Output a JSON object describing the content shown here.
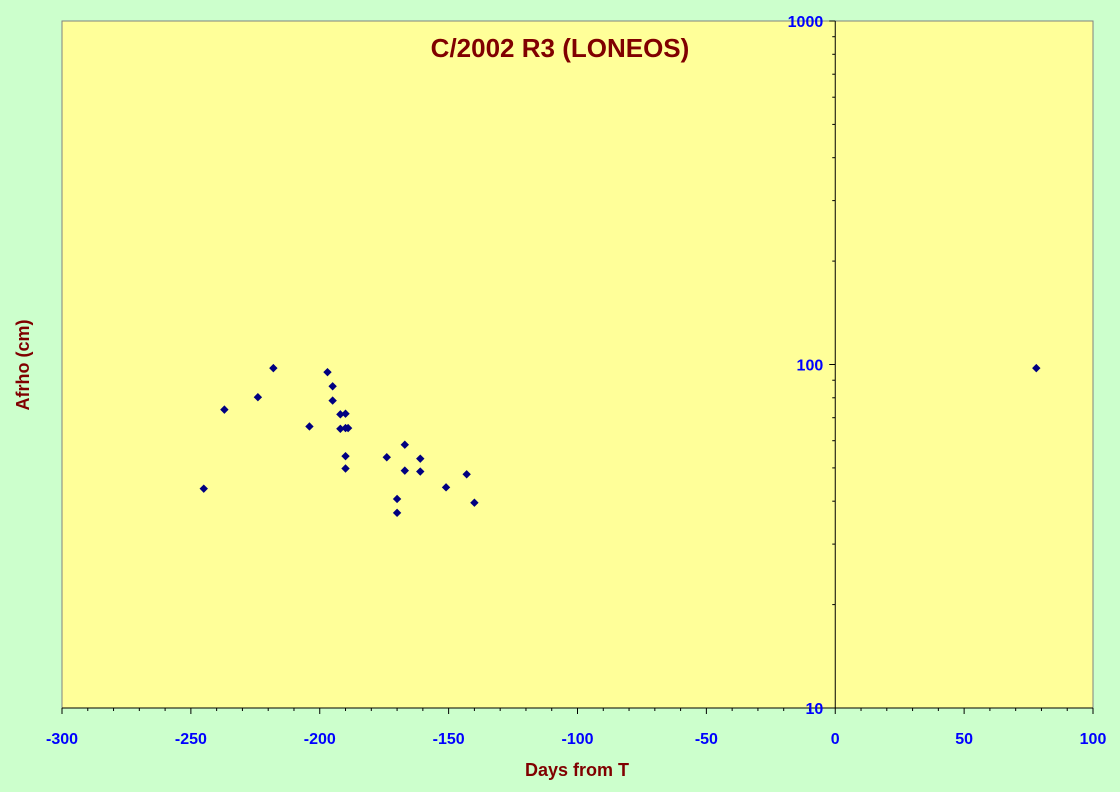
{
  "chart_data": {
    "type": "scatter",
    "title": "C/2002 R3 (LONEOS)",
    "xlabel": "Days from T",
    "ylabel": "Afrho (cm)",
    "xlim": [
      -300,
      100
    ],
    "ylim": [
      10,
      1000
    ],
    "yscale": "log",
    "x_ticks": [
      -300,
      -250,
      -200,
      -150,
      -100,
      -50,
      0,
      50,
      100
    ],
    "y_ticks": [
      10,
      100,
      1000
    ],
    "grid": false,
    "colors": {
      "background": "#ccffcc",
      "plot_area": "#ffff99",
      "marker": "#000080",
      "title": "#800000",
      "axis_label": "#800000",
      "tick_label": "#0000ff"
    },
    "series": [
      {
        "marker": "diamond",
        "x": [
          -245,
          -237,
          -224,
          -218,
          -204,
          -197,
          -195,
          -195,
          -192,
          -192,
          -190,
          -190,
          -190,
          -190,
          -189,
          -174,
          -167,
          -167,
          -170,
          -170,
          -161,
          -161,
          -151,
          -143,
          -140,
          78
        ],
        "y": [
          43.5,
          73.9,
          80.3,
          97.6,
          66.0,
          95.0,
          86.4,
          78.5,
          71.6,
          65.0,
          71.9,
          65.3,
          54.1,
          49.8,
          65.3,
          53.7,
          58.4,
          49.1,
          40.6,
          37.0,
          53.2,
          48.8,
          43.9,
          47.9,
          39.6,
          97.6
        ]
      }
    ]
  }
}
